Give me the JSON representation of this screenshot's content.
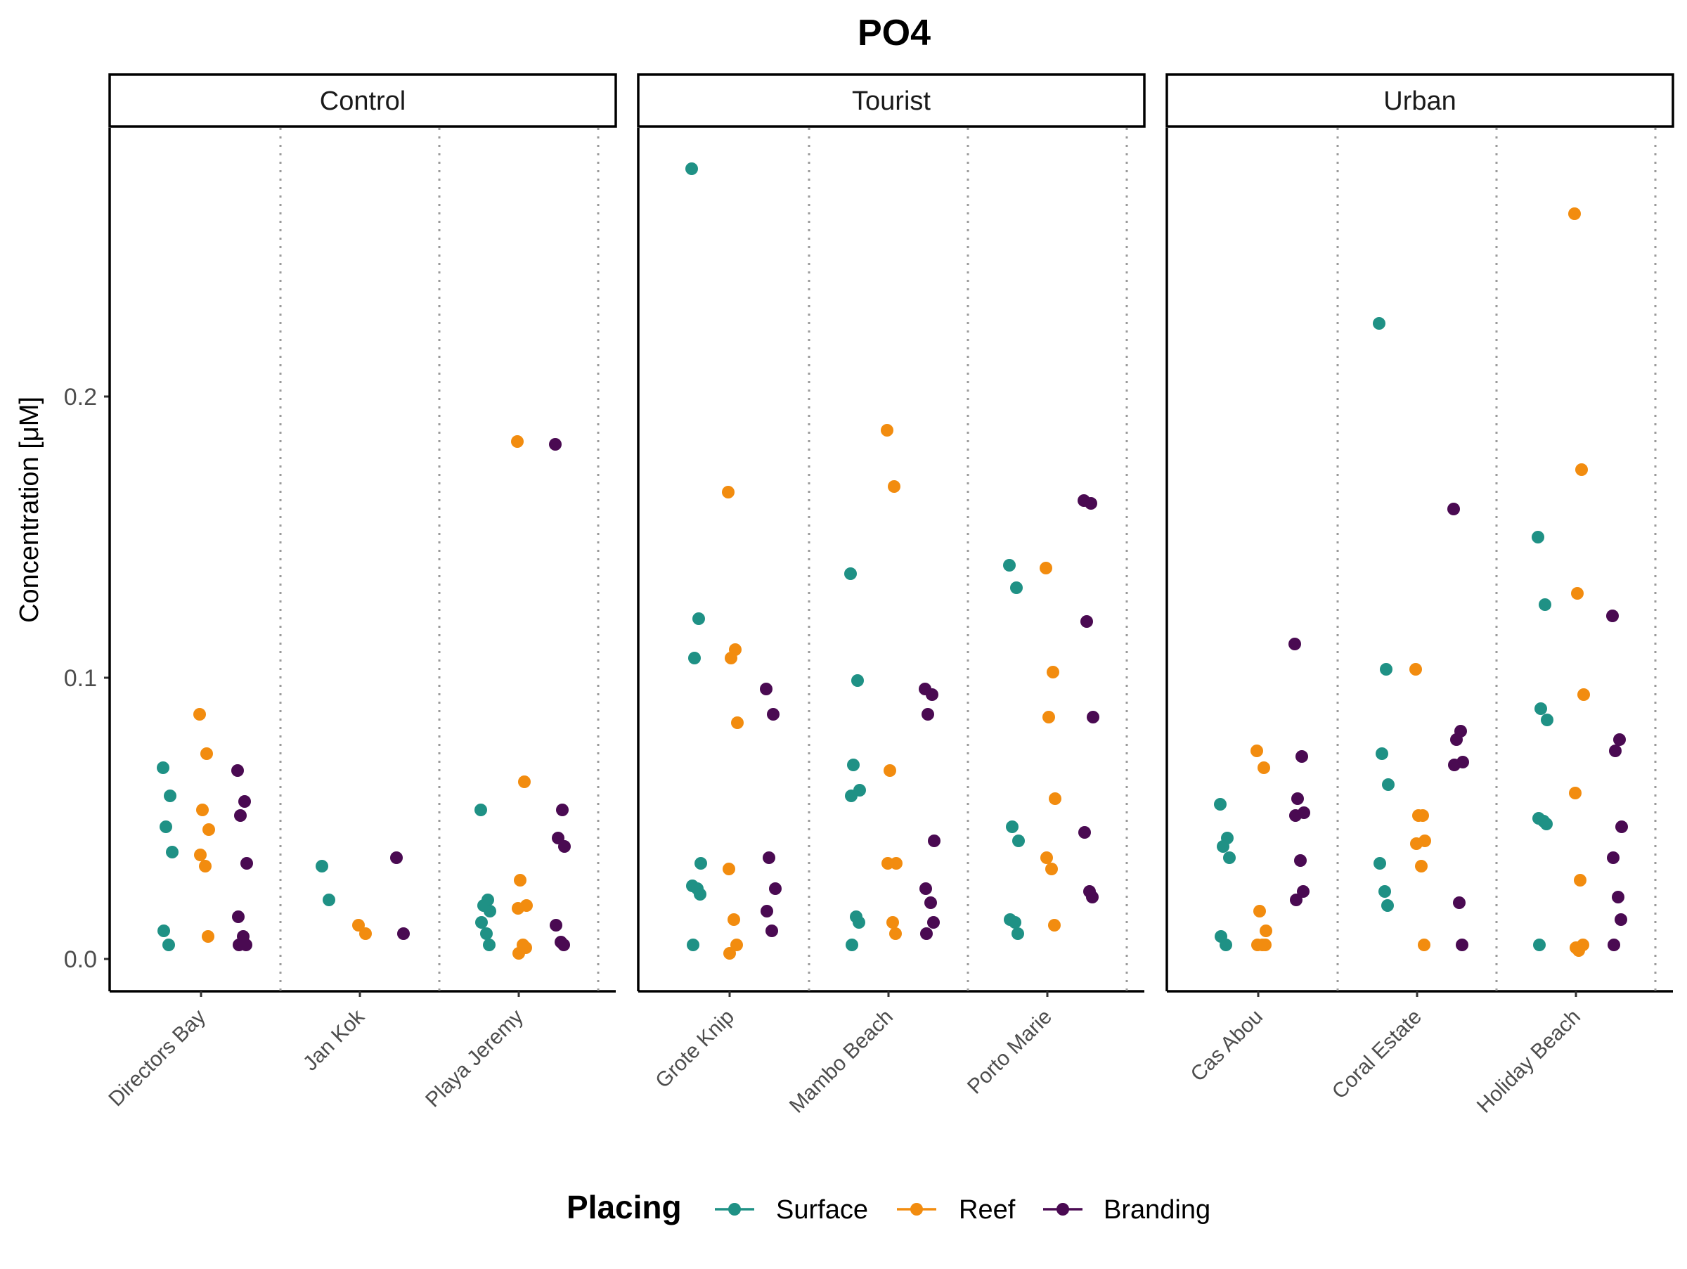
{
  "chart_data": {
    "type": "scatter",
    "title": "PO4",
    "ylabel": "Concentration [μM]",
    "xlabel": "",
    "ylim": [
      -0.012,
      0.295
    ],
    "yticks": [
      0.0,
      0.1,
      0.2
    ],
    "ytick_labels": [
      "0.0",
      "0.1",
      "0.2"
    ],
    "grid": "dotted vertical separators between sites",
    "legend": {
      "title": "Placing",
      "position": "bottom"
    },
    "colors": {
      "Surface": "#1f9185",
      "Reef": "#f28c0f",
      "Branding": "#4a0a52"
    },
    "series_order": [
      "Surface",
      "Reef",
      "Branding"
    ],
    "facets": [
      {
        "label": "Control",
        "sites": [
          {
            "name": "Directors Bay",
            "Surface": [
              0.068,
              0.058,
              0.047,
              0.038,
              0.01,
              0.005
            ],
            "Reef": [
              0.087,
              0.073,
              0.053,
              0.046,
              0.037,
              0.033,
              0.008
            ],
            "Branding": [
              0.067,
              0.056,
              0.051,
              0.034,
              0.015,
              0.008,
              0.005,
              0.005
            ]
          },
          {
            "name": "Jan Kok",
            "Surface": [
              0.033,
              0.021
            ],
            "Reef": [
              0.012,
              0.009
            ],
            "Branding": [
              0.036,
              0.009
            ]
          },
          {
            "name": "Playa Jeremy",
            "Surface": [
              0.053,
              0.021,
              0.019,
              0.017,
              0.013,
              0.009,
              0.005
            ],
            "Reef": [
              0.184,
              0.063,
              0.028,
              0.019,
              0.018,
              0.005,
              0.004,
              0.002
            ],
            "Branding": [
              0.183,
              0.053,
              0.043,
              0.04,
              0.012,
              0.006,
              0.005
            ]
          }
        ]
      },
      {
        "label": "Tourist",
        "sites": [
          {
            "name": "Grote Knip",
            "Surface": [
              0.281,
              0.121,
              0.107,
              0.034,
              0.026,
              0.025,
              0.023,
              0.005
            ],
            "Reef": [
              0.166,
              0.11,
              0.107,
              0.084,
              0.032,
              0.014,
              0.005,
              0.002
            ],
            "Branding": [
              0.096,
              0.087,
              0.036,
              0.025,
              0.017,
              0.01
            ]
          },
          {
            "name": "Mambo Beach",
            "Surface": [
              0.137,
              0.099,
              0.069,
              0.06,
              0.058,
              0.015,
              0.013,
              0.005
            ],
            "Reef": [
              0.188,
              0.168,
              0.067,
              0.034,
              0.034,
              0.013,
              0.009
            ],
            "Branding": [
              0.096,
              0.094,
              0.087,
              0.042,
              0.025,
              0.02,
              0.013,
              0.009
            ]
          },
          {
            "name": "Porto Marie",
            "Surface": [
              0.14,
              0.132,
              0.047,
              0.042,
              0.014,
              0.013,
              0.009
            ],
            "Reef": [
              0.139,
              0.102,
              0.086,
              0.057,
              0.036,
              0.032,
              0.012
            ],
            "Branding": [
              0.163,
              0.162,
              0.12,
              0.086,
              0.045,
              0.024,
              0.022
            ]
          }
        ]
      },
      {
        "label": "Urban",
        "sites": [
          {
            "name": "Cas Abou",
            "Surface": [
              0.055,
              0.043,
              0.04,
              0.036,
              0.008,
              0.005
            ],
            "Reef": [
              0.074,
              0.068,
              0.017,
              0.01,
              0.005,
              0.005,
              0.005
            ],
            "Branding": [
              0.112,
              0.072,
              0.057,
              0.052,
              0.051,
              0.035,
              0.024,
              0.021
            ]
          },
          {
            "name": "Coral Estate",
            "Surface": [
              0.226,
              0.103,
              0.073,
              0.062,
              0.034,
              0.024,
              0.019
            ],
            "Reef": [
              0.103,
              0.051,
              0.051,
              0.042,
              0.041,
              0.033,
              0.005
            ],
            "Branding": [
              0.16,
              0.081,
              0.078,
              0.07,
              0.069,
              0.02,
              0.005
            ]
          },
          {
            "name": "Holiday Beach",
            "Surface": [
              0.15,
              0.126,
              0.089,
              0.085,
              0.05,
              0.049,
              0.048,
              0.005
            ],
            "Reef": [
              0.265,
              0.174,
              0.13,
              0.094,
              0.059,
              0.028,
              0.005,
              0.004,
              0.003
            ],
            "Branding": [
              0.122,
              0.078,
              0.074,
              0.047,
              0.036,
              0.022,
              0.014,
              0.005
            ]
          }
        ]
      }
    ]
  }
}
